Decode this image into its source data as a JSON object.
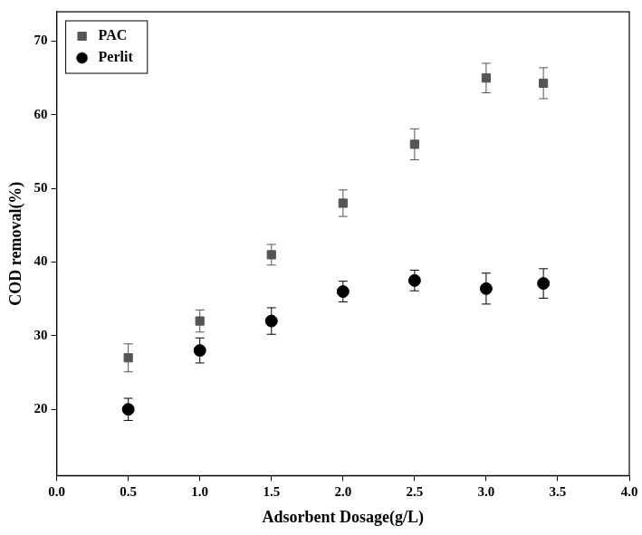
{
  "chart_data": {
    "type": "scatter",
    "x_label": "Adsorbent Dosage(g/L)",
    "y_label": "COD removal(%)",
    "x": [
      0.5,
      1.0,
      1.5,
      2.0,
      2.5,
      3.0,
      3.4
    ],
    "series": [
      {
        "name": "PAC",
        "color": "#555555",
        "marker": "square",
        "values": [
          27,
          32,
          41,
          48,
          56,
          65,
          64.3
        ],
        "errors": [
          1.9,
          1.5,
          1.4,
          1.8,
          2.1,
          2.0,
          2.1
        ]
      },
      {
        "name": "Perlit",
        "color": "#000000",
        "marker": "circle",
        "values": [
          20,
          28,
          32,
          36,
          37.5,
          36.4,
          37.1
        ],
        "errors": [
          1.5,
          1.7,
          1.8,
          1.4,
          1.4,
          2.1,
          2.0
        ]
      }
    ],
    "xlim": [
      0,
      4
    ],
    "xticks": [
      {
        "value": 0,
        "label": "0.0"
      },
      0.5,
      {
        "value": 1,
        "label": "1.0"
      },
      1.5,
      {
        "value": 2,
        "label": "2.0"
      },
      2.5,
      {
        "value": 3,
        "label": "3.0"
      },
      3.5,
      {
        "value": 4,
        "label": "4.0"
      }
    ],
    "ylim": [
      11,
      74
    ],
    "yticks": [
      20,
      30,
      40,
      50,
      60,
      70
    ],
    "grid": false,
    "legend": "upper left"
  }
}
